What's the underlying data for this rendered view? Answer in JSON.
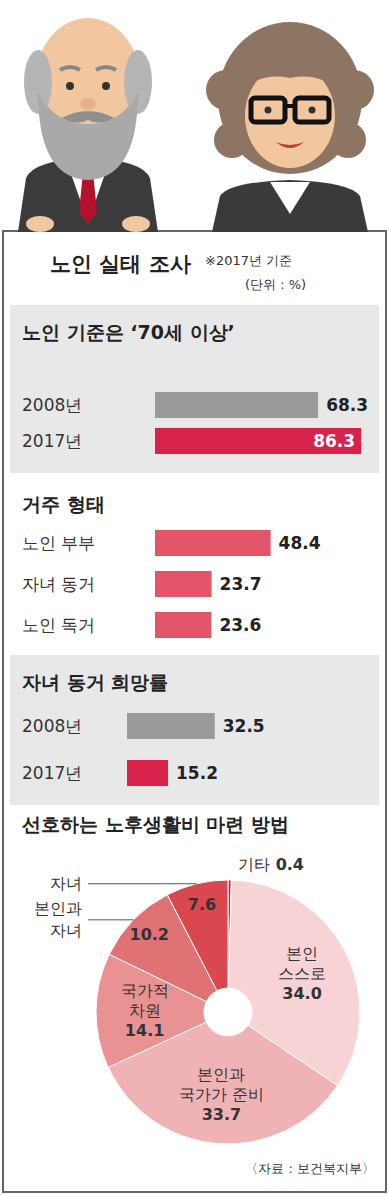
{
  "title": "노인 실태 조사",
  "note": "※2017년 기준",
  "unit": "(단위 : %)",
  "source": "〈자료 : 보건복지부〉",
  "chart_data": [
    {
      "type": "bar",
      "title": "노인 기준은 ‘70세 이상’",
      "orientation": "horizontal",
      "categories": [
        "2008년",
        "2017년"
      ],
      "values": [
        68.3,
        86.3
      ],
      "colors": [
        "#9a9a9a",
        "#d7234a"
      ],
      "xlim": [
        0,
        90
      ],
      "data_labels": true,
      "tick_labels": "y"
    },
    {
      "type": "bar",
      "title": "거주 형태",
      "orientation": "horizontal",
      "categories": [
        "노인 부부",
        "자녀 동거",
        "노인 독거"
      ],
      "values": [
        48.4,
        23.7,
        23.6
      ],
      "color": "#e3566a",
      "xlim": [
        0,
        90
      ],
      "data_labels": true,
      "tick_labels": "y"
    },
    {
      "type": "bar",
      "title": "자녀 동거 희망률",
      "orientation": "horizontal",
      "categories": [
        "2008년",
        "2017년"
      ],
      "values": [
        32.5,
        15.2
      ],
      "colors": [
        "#9a9a9a",
        "#d7234a"
      ],
      "xlim": [
        0,
        90
      ],
      "data_labels": true,
      "tick_labels": "y"
    },
    {
      "type": "pie",
      "title": "선호하는 노후생활비 마련 방법",
      "categories": [
        "기타",
        "본인 스스로",
        "본인과 국가가 준비",
        "국가적 차원",
        "본인과 자녀",
        "자녀"
      ],
      "values": [
        0.4,
        34.0,
        33.7,
        14.1,
        10.2,
        7.6
      ],
      "value_labels": [
        "0.4",
        "34.0",
        "33.7",
        "14.1",
        "10.2",
        "7.6"
      ],
      "colors": [
        "#cf1f3b",
        "#f7d3d5",
        "#f0b3b5",
        "#e89294",
        "#e07175",
        "#d9474f"
      ],
      "data_labels": true
    }
  ]
}
